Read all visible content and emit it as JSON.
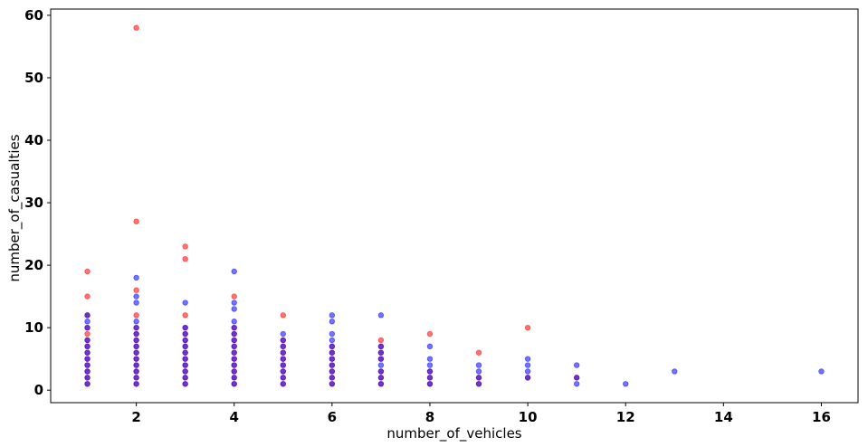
{
  "chart_data": {
    "type": "scatter",
    "title": "",
    "xlabel": "number_of_vehicles",
    "ylabel": "number_of_casualties",
    "xlim": [
      0.25,
      16.75
    ],
    "ylim": [
      -2,
      61
    ],
    "xticks": [
      2,
      4,
      6,
      8,
      10,
      12,
      14,
      16
    ],
    "yticks": [
      0,
      10,
      20,
      30,
      40,
      50,
      60
    ],
    "grid": false,
    "legend": "none",
    "series": [
      {
        "color": "#ff0000",
        "opacity": 0.55,
        "x": [
          1,
          1,
          1,
          1,
          1,
          1,
          1,
          1,
          1,
          1,
          1,
          1,
          1,
          2,
          2,
          2,
          2,
          2,
          2,
          2,
          2,
          2,
          2,
          2,
          2,
          2,
          2,
          3,
          3,
          3,
          3,
          3,
          3,
          3,
          3,
          3,
          3,
          3,
          3,
          3,
          4,
          4,
          4,
          4,
          4,
          4,
          4,
          4,
          4,
          4,
          4,
          5,
          5,
          5,
          5,
          5,
          5,
          5,
          5,
          5,
          6,
          6,
          6,
          6,
          6,
          6,
          6,
          7,
          7,
          7,
          7,
          7,
          7,
          7,
          8,
          8,
          8,
          8,
          9,
          9,
          9,
          10,
          10,
          11
        ],
        "y": [
          1,
          2,
          3,
          4,
          5,
          6,
          7,
          8,
          9,
          12,
          15,
          19,
          10,
          1,
          2,
          3,
          4,
          5,
          6,
          7,
          8,
          9,
          10,
          12,
          16,
          27,
          58,
          1,
          2,
          3,
          4,
          5,
          6,
          7,
          8,
          9,
          10,
          12,
          21,
          23,
          1,
          2,
          3,
          4,
          5,
          6,
          7,
          8,
          10,
          15,
          9,
          1,
          2,
          3,
          4,
          5,
          6,
          7,
          12,
          8,
          1,
          2,
          3,
          4,
          5,
          7,
          6,
          1,
          2,
          3,
          5,
          6,
          7,
          8,
          1,
          2,
          3,
          9,
          1,
          2,
          6,
          2,
          10,
          2
        ]
      },
      {
        "color": "#0000ff",
        "opacity": 0.55,
        "x": [
          1,
          1,
          1,
          1,
          1,
          1,
          1,
          1,
          1,
          1,
          1,
          2,
          2,
          2,
          2,
          2,
          2,
          2,
          2,
          2,
          2,
          2,
          2,
          2,
          2,
          3,
          3,
          3,
          3,
          3,
          3,
          3,
          3,
          3,
          3,
          3,
          4,
          4,
          4,
          4,
          4,
          4,
          4,
          4,
          4,
          4,
          4,
          4,
          4,
          4,
          5,
          5,
          5,
          5,
          5,
          5,
          5,
          5,
          5,
          6,
          6,
          6,
          6,
          6,
          6,
          6,
          6,
          6,
          6,
          6,
          7,
          7,
          7,
          7,
          7,
          7,
          7,
          7,
          8,
          8,
          8,
          8,
          8,
          8,
          9,
          9,
          9,
          9,
          10,
          10,
          10,
          10,
          11,
          11,
          11,
          12,
          13,
          16
        ],
        "y": [
          1,
          2,
          3,
          4,
          5,
          6,
          7,
          8,
          10,
          11,
          12,
          1,
          2,
          3,
          4,
          5,
          6,
          7,
          8,
          9,
          10,
          11,
          14,
          15,
          18,
          1,
          2,
          3,
          4,
          5,
          6,
          7,
          8,
          9,
          10,
          14,
          1,
          2,
          3,
          4,
          5,
          6,
          7,
          8,
          9,
          10,
          13,
          14,
          19,
          11,
          1,
          2,
          3,
          4,
          5,
          6,
          7,
          8,
          9,
          1,
          2,
          3,
          4,
          5,
          6,
          7,
          9,
          11,
          12,
          8,
          1,
          2,
          3,
          4,
          5,
          6,
          7,
          12,
          1,
          2,
          3,
          4,
          5,
          7,
          1,
          3,
          4,
          2,
          2,
          3,
          4,
          5,
          1,
          2,
          4,
          1,
          3,
          3
        ]
      }
    ]
  }
}
